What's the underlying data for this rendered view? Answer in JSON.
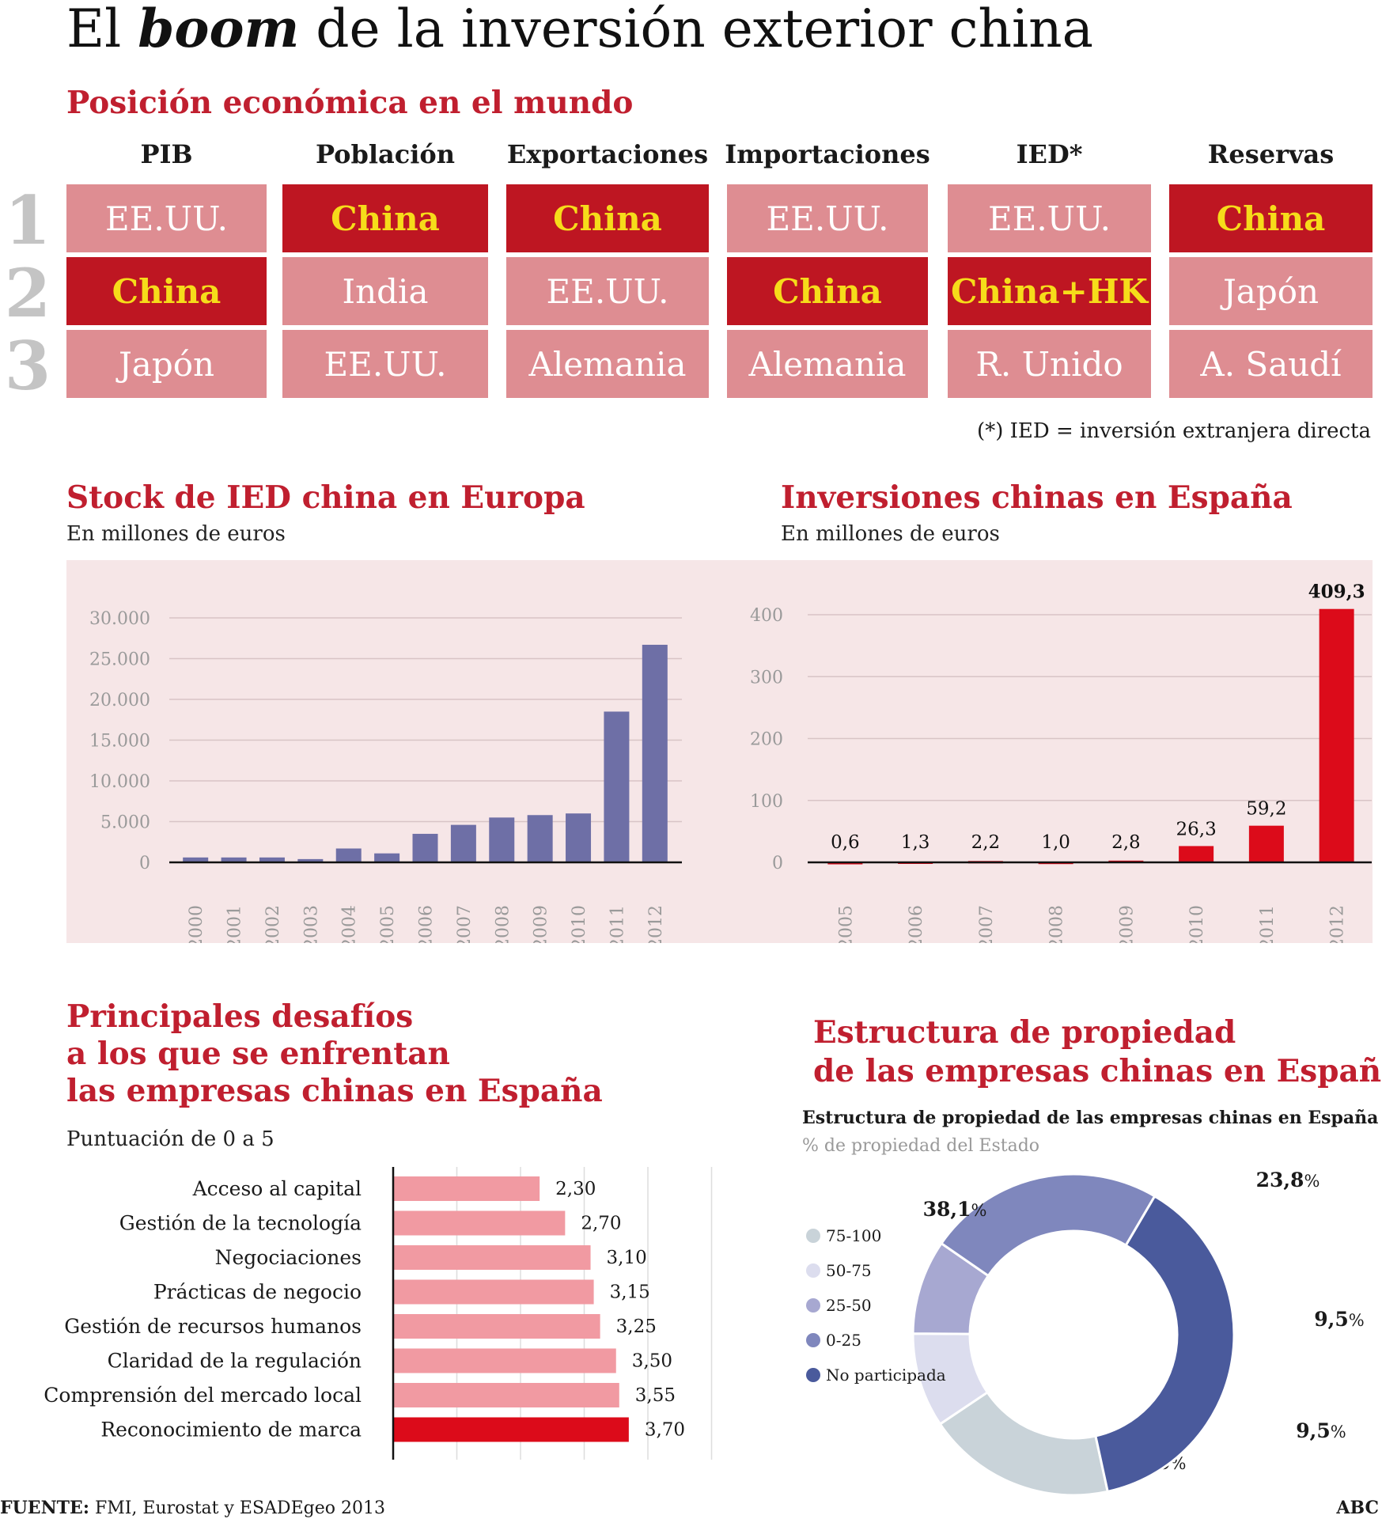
{
  "title": {
    "pre": "El ",
    "em": "boom",
    "post": " de la inversión exterior china"
  },
  "ranking": {
    "title": "Posición económica en el mundo",
    "columns": [
      "PIB",
      "Población",
      "Exportaciones",
      "Importaciones",
      "IED*",
      "Reservas"
    ],
    "ranks": [
      "1",
      "2",
      "3"
    ],
    "rows": [
      [
        "EE.UU.",
        "China",
        "China",
        "EE.UU.",
        "EE.UU.",
        "China"
      ],
      [
        "China",
        "India",
        "EE.UU.",
        "China",
        "China+HK",
        "Japón"
      ],
      [
        "Japón",
        "EE.UU.",
        "Alemania",
        "Alemania",
        "R. Unido",
        "A. Saudí"
      ]
    ],
    "highlight": [
      [
        false,
        true,
        true,
        false,
        false,
        true
      ],
      [
        true,
        false,
        false,
        true,
        true,
        false
      ],
      [
        false,
        false,
        false,
        false,
        false,
        false
      ]
    ],
    "note": "(*) IED = inversión extranjera directa",
    "colors": {
      "highlight": "#be1622",
      "highlight_text": "#f6dc1a",
      "normal": "#de8d92",
      "normal_text": "#ffffff"
    }
  },
  "stock": {
    "title": "Stock de IED china en Europa",
    "subtitle": "En millones de euros"
  },
  "spain": {
    "title": "Inversiones chinas en España",
    "subtitle": "En millones de euros"
  },
  "challenges": {
    "title_lines": [
      "Principales desafíos",
      "a los que se enfrentan",
      "las empresas chinas en España"
    ],
    "subtitle": "Puntuación de 0 a 5"
  },
  "ownership": {
    "title_lines": [
      "Estructura de propiedad",
      "de las empresas chinas en España"
    ],
    "chart_title": "Estructura de propiedad de las empresas chinas en España",
    "chart_subtitle": "% de propiedad del Estado"
  },
  "footer": {
    "source_label": "FUENTE:",
    "source_text": " FMI, Eurostat y ESADEgeo 2013",
    "brand": "ABC"
  },
  "chart_data": [
    {
      "type": "bar",
      "title": "Stock de IED china en Europa",
      "ylabel": "En millones de euros",
      "categories": [
        "2000",
        "2001",
        "2002",
        "2003",
        "2004",
        "2005",
        "2006",
        "2007",
        "2008",
        "2009",
        "2010",
        "2011",
        "2012"
      ],
      "values": [
        600,
        600,
        600,
        400,
        1700,
        1100,
        3500,
        4600,
        5500,
        5800,
        6000,
        18500,
        26700
      ],
      "ylim": [
        0,
        30000
      ],
      "yticks": [
        0,
        5000,
        10000,
        15000,
        20000,
        25000,
        30000
      ],
      "ytick_labels": [
        "0",
        "5.000",
        "10.000",
        "15.000",
        "20.000",
        "25.000",
        "30.000"
      ],
      "grid": true,
      "color": "#6e6fa6"
    },
    {
      "type": "bar",
      "title": "Inversiones chinas en España",
      "ylabel": "En millones de euros",
      "categories": [
        "2005",
        "2006",
        "2007",
        "2008",
        "2009",
        "2010",
        "2011",
        "2012"
      ],
      "values": [
        0.6,
        1.3,
        2.2,
        1.0,
        2.8,
        26.3,
        59.2,
        409.3
      ],
      "value_labels": [
        "0,6",
        "1,3",
        "2,2",
        "1,0",
        "2,8",
        "26,3",
        "59,2",
        "409,3"
      ],
      "ylim": [
        0,
        400
      ],
      "yticks": [
        0,
        100,
        200,
        300,
        400
      ],
      "ytick_labels": [
        "0",
        "100",
        "200",
        "300",
        "400"
      ],
      "grid": true,
      "color": "#dc0b1a"
    },
    {
      "type": "bar",
      "orientation": "horizontal",
      "title": "Principales desafíos a los que se enfrentan las empresas chinas en España",
      "xlabel": "Puntuación de 0 a 5",
      "categories": [
        "Acceso al capital",
        "Gestión de la tecnología",
        "Negociaciones",
        "Prácticas de negocio",
        "Gestión de recursos humanos",
        "Claridad de la regulación",
        "Comprensión del mercado local",
        "Reconocimiento de marca"
      ],
      "values": [
        2.3,
        2.7,
        3.1,
        3.15,
        3.25,
        3.5,
        3.55,
        3.7
      ],
      "value_labels": [
        "2,30",
        "2,70",
        "3,10",
        "3,15",
        "3,25",
        "3,50",
        "3,55",
        "3,70"
      ],
      "xlim": [
        0,
        5
      ],
      "grid": true,
      "color": "#f19aa2",
      "highlight_color": "#dc0b1a",
      "highlight_index": 7
    },
    {
      "type": "pie",
      "donut": true,
      "title": "Estructura de propiedad de las empresas chinas en España",
      "subtitle": "% de propiedad del Estado",
      "legend_position": "left",
      "labels": [
        "75-100",
        "50-75",
        "25-50",
        "0-25",
        "No participada"
      ],
      "values": [
        19.0,
        9.5,
        9.5,
        23.8,
        38.1
      ],
      "value_labels": [
        "19,0",
        "9,5",
        "9,5",
        "23,8",
        "38,1"
      ],
      "percent_sign": "%",
      "colors": [
        "#c9d3d9",
        "#dcddee",
        "#a7a8d1",
        "#7f87bd",
        "#4a5a9c"
      ]
    }
  ]
}
